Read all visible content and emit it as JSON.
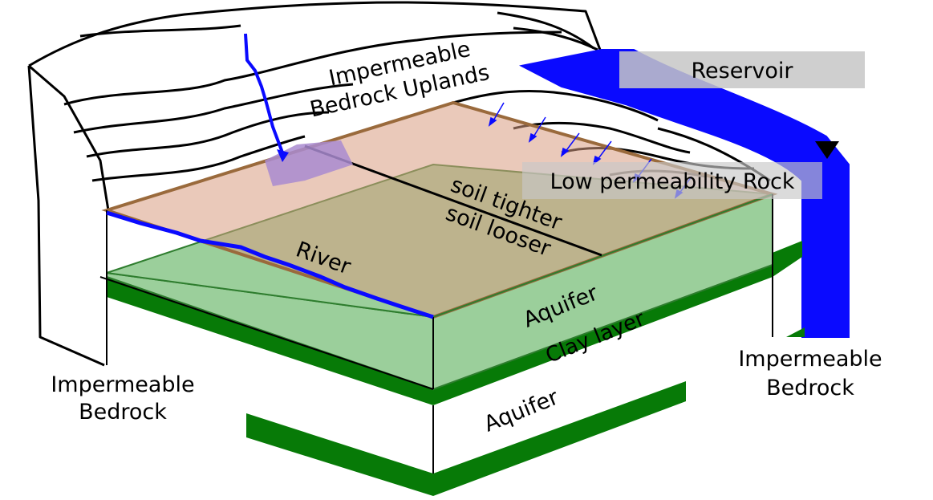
{
  "labels": {
    "uplands_line1": "Impermeable",
    "uplands_line2": "Bedrock Uplands",
    "reservoir": "Reservoir",
    "low_perm_rock": "Low permeability Rock",
    "soil_tighter": "soil tighter",
    "soil_looser": "soil looser",
    "river": "River",
    "aquifer_upper": "Aquifer",
    "clay_layer": "Clay layer",
    "aquifer_lower": "Aquifer",
    "bedrock_left_line1": "Impermeable",
    "bedrock_left_line2": "Bedrock",
    "bedrock_right_line1": "Impermeable",
    "bedrock_right_line2": "Bedrock"
  },
  "colors": {
    "water_blue": "#0a0aff",
    "soil_surface": "#e3bfae",
    "soil_edge": "#9a6a3c",
    "aquifer_green": "#9bcf9b",
    "aquifer_dark": "#7fa36c",
    "clay_green": "#077a07",
    "label_box_gray": "#c7c7c7",
    "seep_purple": "#a98bd0"
  }
}
